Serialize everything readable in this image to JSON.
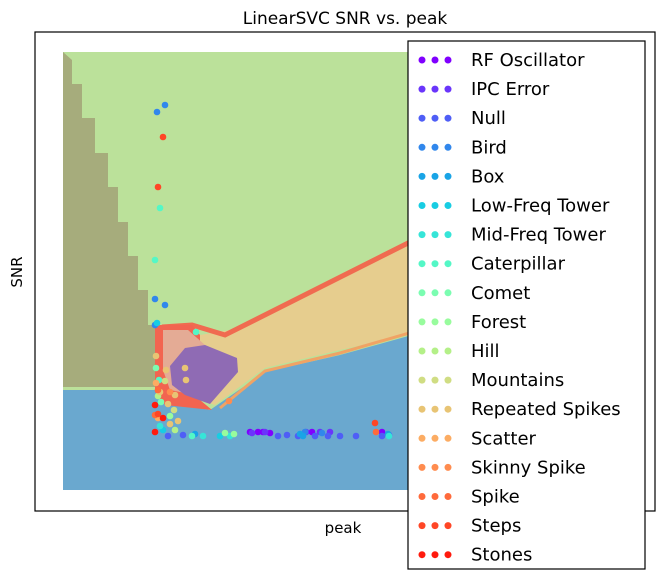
{
  "chart_data": {
    "type": "scatter",
    "title": "LinearSVC SNR vs. peak",
    "xlabel": "peak",
    "ylabel": "SNR",
    "grid": false,
    "ticks": "none",
    "legend_position": "right",
    "background": "decision regions",
    "series": [
      {
        "name": "RF Oscillator",
        "color": "#8000ff",
        "points": [
          [
            250,
            432
          ],
          [
            258,
            432
          ],
          [
            263,
            432
          ],
          [
            270,
            433
          ],
          [
            312,
            432
          ],
          [
            382,
            432
          ]
        ]
      },
      {
        "name": "IPC Error",
        "color": "#6a35fb",
        "points": [
          [
            252,
            433
          ],
          [
            265,
            432
          ],
          [
            306,
            432
          ],
          [
            320,
            432
          ],
          [
            330,
            432
          ]
        ]
      },
      {
        "name": "Null",
        "color": "#4f5ef6",
        "points": [
          [
            168,
            436
          ],
          [
            183,
            435
          ],
          [
            278,
            436
          ],
          [
            287,
            435
          ],
          [
            298,
            436
          ],
          [
            315,
            436
          ],
          [
            328,
            436
          ],
          [
            340,
            436
          ],
          [
            356,
            436
          ],
          [
            382,
            436
          ],
          [
            389,
            435
          ]
        ]
      },
      {
        "name": "Bird",
        "color": "#3187ec",
        "points": [
          [
            157,
            112
          ],
          [
            165,
            105
          ],
          [
            155,
            299
          ],
          [
            155,
            325
          ],
          [
            165,
            305
          ],
          [
            305,
            432
          ],
          [
            322,
            433
          ]
        ]
      },
      {
        "name": "Box",
        "color": "#19a4e6",
        "points": [
          [
            195,
            434
          ],
          [
            300,
            434
          ],
          [
            303,
            436
          ],
          [
            388,
            434
          ]
        ]
      },
      {
        "name": "Low-Freq Tower",
        "color": "#18cde3",
        "points": [
          [
            157,
            323
          ],
          [
            163,
            430
          ],
          [
            220,
            436
          ]
        ]
      },
      {
        "name": "Mid-Freq Tower",
        "color": "#36e5d8",
        "points": [
          [
            160,
            426
          ],
          [
            203,
            436
          ],
          [
            230,
            436
          ],
          [
            389,
            436
          ]
        ]
      },
      {
        "name": "Caterpillar",
        "color": "#54f7c6",
        "points": [
          [
            155,
            260
          ],
          [
            160,
            208
          ],
          [
            159,
            380
          ],
          [
            196,
            332
          ],
          [
            192,
            436
          ]
        ]
      },
      {
        "name": "Comet",
        "color": "#7bfdb1",
        "points": [
          [
            156,
            368
          ],
          [
            161,
            402
          ]
        ]
      },
      {
        "name": "Forest",
        "color": "#98fc9d",
        "points": [
          [
            170,
            416
          ],
          [
            225,
            433
          ],
          [
            234,
            434
          ]
        ]
      },
      {
        "name": "Hill",
        "color": "#b4f088",
        "points": [
          [
            175,
            430
          ],
          [
            158,
            396
          ]
        ]
      },
      {
        "name": "Mountains",
        "color": "#d0dd83",
        "points": [
          [
            165,
            381
          ],
          [
            174,
            410
          ]
        ]
      },
      {
        "name": "Repeated Spikes",
        "color": "#e8c474",
        "points": [
          [
            156,
            356
          ],
          [
            166,
            370
          ],
          [
            185,
            368
          ],
          [
            186,
            380
          ],
          [
            160,
            392
          ],
          [
            175,
            395
          ],
          [
            168,
            404
          ],
          [
            170,
            424
          ],
          [
            178,
            421
          ]
        ]
      },
      {
        "name": "Scatter",
        "color": "#fcac63",
        "points": [
          [
            156,
            383
          ],
          [
            158,
            418
          ]
        ]
      },
      {
        "name": "Skinny Spike",
        "color": "#ff8c4f",
        "points": [
          [
            229,
            401
          ],
          [
            170,
            392
          ]
        ]
      },
      {
        "name": "Spike",
        "color": "#ff6a3b",
        "points": [
          [
            158,
            390
          ],
          [
            155,
            415
          ],
          [
            376,
            432
          ]
        ]
      },
      {
        "name": "Steps",
        "color": "#ff4626",
        "points": [
          [
            163,
            137
          ],
          [
            158,
            187
          ],
          [
            375,
            423
          ],
          [
            158,
            414
          ]
        ]
      },
      {
        "name": "Stones",
        "color": "#ff1a0d",
        "points": [
          [
            155,
            405
          ],
          [
            155,
            432
          ],
          [
            163,
            418
          ]
        ]
      }
    ]
  }
}
